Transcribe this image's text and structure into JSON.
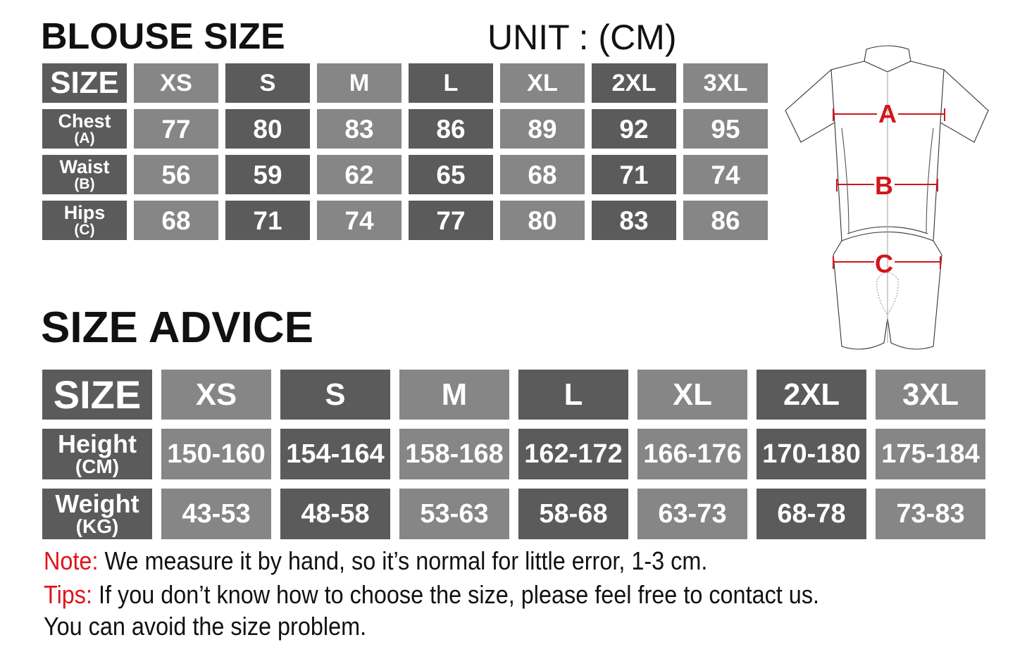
{
  "blouse_size": {
    "title": "BLOUSE SIZE",
    "unit": "UNIT : (CM)",
    "header_label": "SIZE",
    "sizes": [
      "XS",
      "S",
      "M",
      "L",
      "XL",
      "2XL",
      "3XL"
    ],
    "rows": [
      {
        "label": "Chest",
        "sub": "(A)",
        "values": [
          "77",
          "80",
          "83",
          "86",
          "89",
          "92",
          "95"
        ]
      },
      {
        "label": "Waist",
        "sub": "(B)",
        "values": [
          "56",
          "59",
          "62",
          "65",
          "68",
          "71",
          "74"
        ]
      },
      {
        "label": "Hips",
        "sub": "(C)",
        "values": [
          "68",
          "71",
          "74",
          "77",
          "80",
          "83",
          "86"
        ]
      }
    ]
  },
  "size_advice": {
    "title": "SIZE ADVICE",
    "header_label": "SIZE",
    "sizes": [
      "XS",
      "S",
      "M",
      "L",
      "XL",
      "2XL",
      "3XL"
    ],
    "rows": [
      {
        "label": "Height",
        "sub": "(CM)",
        "values": [
          "150-160",
          "154-164",
          "158-168",
          "162-172",
          "166-176",
          "170-180",
          "175-184"
        ]
      },
      {
        "label": "Weight",
        "sub": "(KG)",
        "values": [
          "43-53",
          "48-58",
          "53-63",
          "58-68",
          "63-73",
          "68-78",
          "73-83"
        ]
      }
    ]
  },
  "diagram": {
    "labels": [
      "A",
      "B",
      "C"
    ],
    "measure_color": "#d0161c"
  },
  "notes": {
    "note_label": "Note:",
    "note_text": " We measure it by hand, so it’s normal for little error, 1-3 cm.",
    "tips_label": "Tips:",
    "tips_text": " If you don’t know how to choose the size, please feel free to contact us.",
    "tips_text2": "You can avoid the size problem."
  },
  "colors": {
    "dark_cell": "#5b5b5b",
    "light_cell": "#868686",
    "accent_red": "#e0141b"
  }
}
